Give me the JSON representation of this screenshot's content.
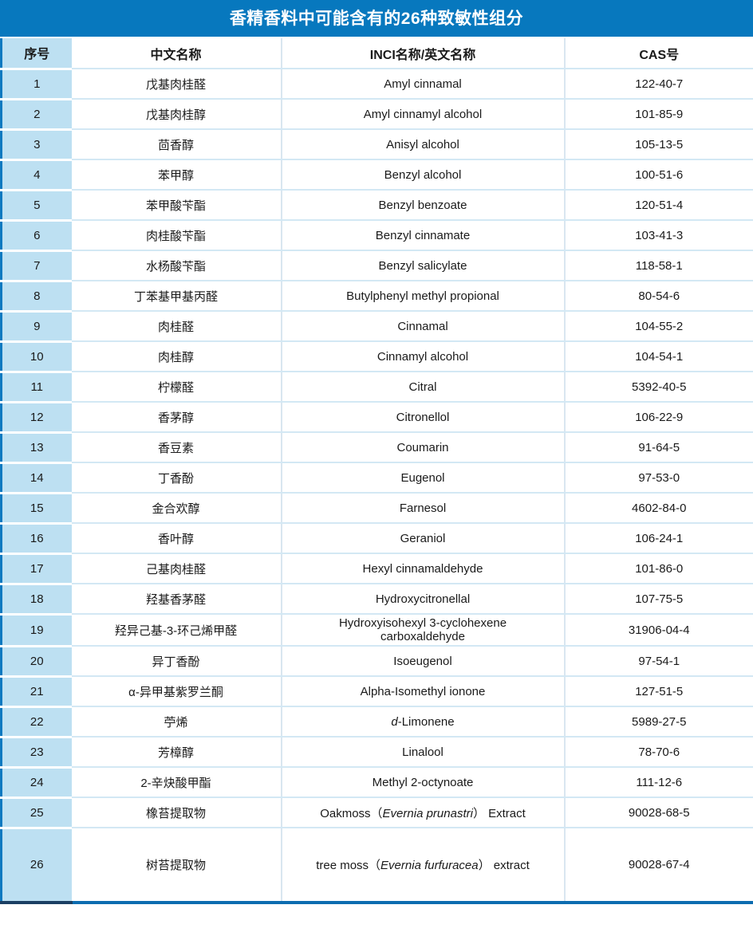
{
  "title": "香精香料中可能含有的26种致敏性组分",
  "colors": {
    "title_bg": "#0778BE",
    "lightblue": "#BDE0F2",
    "grid_h": "#D3E8F4",
    "grid_v": "#D9E6F0",
    "frame": "#0F79C0",
    "bottom_dark": "#1B3F63",
    "bottom_blue": "#0D6CB0"
  },
  "table": {
    "headers": [
      "序号",
      "中文名称",
      "INCI名称/英文名称",
      "CAS号"
    ],
    "rows": [
      {
        "no": "1",
        "cn": "戊基肉桂醛",
        "inci": "Amyl cinnamal",
        "cas": "122-40-7"
      },
      {
        "no": "2",
        "cn": "戊基肉桂醇",
        "inci": "Amyl cinnamyl alcohol",
        "cas": "101-85-9"
      },
      {
        "no": "3",
        "cn": "茴香醇",
        "inci": "Anisyl alcohol",
        "cas": "105-13-5"
      },
      {
        "no": "4",
        "cn": "苯甲醇",
        "inci": "Benzyl alcohol",
        "cas": "100-51-6"
      },
      {
        "no": "5",
        "cn": "苯甲酸苄酯",
        "inci": "Benzyl benzoate",
        "cas": "120-51-4"
      },
      {
        "no": "6",
        "cn": "肉桂酸苄酯",
        "inci": "Benzyl cinnamate",
        "cas": "103-41-3"
      },
      {
        "no": "7",
        "cn": "水杨酸苄酯",
        "inci": "Benzyl salicylate",
        "cas": "118-58-1"
      },
      {
        "no": "8",
        "cn": "丁苯基甲基丙醛",
        "inci": "Butylphenyl methyl propional",
        "cas": "80-54-6"
      },
      {
        "no": "9",
        "cn": "肉桂醛",
        "inci": "Cinnamal",
        "cas": "104-55-2"
      },
      {
        "no": "10",
        "cn": "肉桂醇",
        "inci": "Cinnamyl alcohol",
        "cas": "104-54-1"
      },
      {
        "no": "11",
        "cn": "柠檬醛",
        "inci": "Citral",
        "cas": "5392-40-5"
      },
      {
        "no": "12",
        "cn": "香茅醇",
        "inci": "Citronellol",
        "cas": "106-22-9"
      },
      {
        "no": "13",
        "cn": "香豆素",
        "inci": "Coumarin",
        "cas": "91-64-5"
      },
      {
        "no": "14",
        "cn": "丁香酚",
        "inci": "Eugenol",
        "cas": "97-53-0"
      },
      {
        "no": "15",
        "cn": "金合欢醇",
        "inci": "Farnesol",
        "cas": "4602-84-0"
      },
      {
        "no": "16",
        "cn": "香叶醇",
        "inci": "Geraniol",
        "cas": "106-24-1"
      },
      {
        "no": "17",
        "cn": "己基肉桂醛",
        "inci": "Hexyl cinnamaldehyde",
        "cas": "101-86-0"
      },
      {
        "no": "18",
        "cn": "羟基香茅醛",
        "inci": "Hydroxycitronellal",
        "cas": "107-75-5"
      },
      {
        "no": "19",
        "cn": "羟异己基-3-环己烯甲醛",
        "inci": "Hydroxyisohexyl 3-cyclohexene\ncarboxaldehyde",
        "cas": "31906-04-4"
      },
      {
        "no": "20",
        "cn": "异丁香酚",
        "inci": "Isoeugenol",
        "cas": "97-54-1"
      },
      {
        "no": "21",
        "cn": "α-异甲基紫罗兰酮",
        "inci": "Alpha-Isomethyl ionone",
        "cas": "127-51-5"
      },
      {
        "no": "22",
        "cn": "苧烯",
        "inci": [
          {
            "t": "d",
            "i": true
          },
          {
            "t": "-Limonene",
            "i": false
          }
        ],
        "cas": "5989-27-5"
      },
      {
        "no": "23",
        "cn": "芳樟醇",
        "inci": "Linalool",
        "cas": "78-70-6"
      },
      {
        "no": "24",
        "cn": "2-辛炔酸甲酯",
        "inci": "Methyl 2-octynoate",
        "cas": "111-12-6"
      },
      {
        "no": "25",
        "cn": "橡苔提取物",
        "inci": [
          {
            "t": "Oakmoss（",
            "i": false
          },
          {
            "t": "Evernia prunastri",
            "i": true
          },
          {
            "t": "） Extract",
            "i": false
          }
        ],
        "cas": "90028-68-5"
      },
      {
        "no": "26",
        "cn": "树苔提取物",
        "inci": [
          {
            "t": "tree moss（",
            "i": false
          },
          {
            "t": "Evernia furfuracea",
            "i": true
          },
          {
            "t": "）  extract",
            "i": false
          }
        ],
        "cas": "90028-67-4",
        "tall": true
      }
    ]
  }
}
